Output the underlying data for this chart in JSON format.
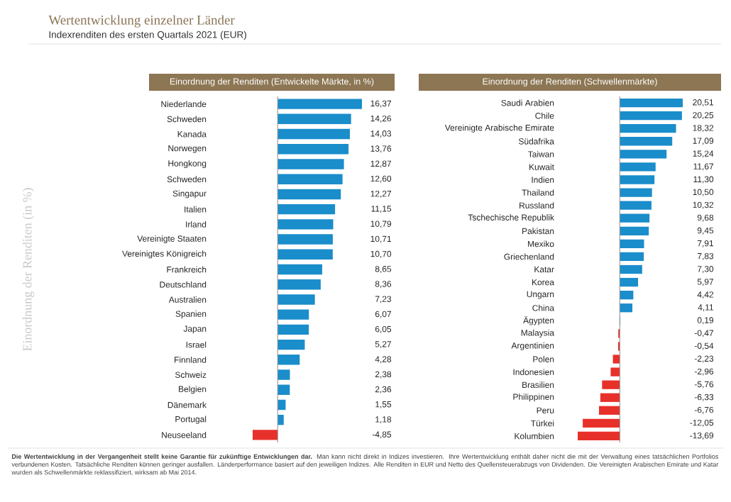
{
  "chart_data": [
    {
      "type": "bar",
      "orientation": "horizontal",
      "title": "Einordnung der Renditen (Entwickelte Märkte, in %)",
      "ylabel": "Einordnung der Renditen (in %)",
      "annotations": [
        "Wertentwicklung einzelner Länder",
        "Indexrenditen des ersten Quartals 2021 (EUR)"
      ],
      "categories": [
        "Niederlande",
        "Schweden",
        "Kanada",
        "Norwegen",
        "Hongkong",
        "Schweden",
        "Singapur",
        "Italien",
        "Irland",
        "Vereinigte Staaten",
        "Vereinigtes Königreich",
        "Frankreich",
        "Deutschland",
        "Australien",
        "Spanien",
        "Japan",
        "Israel",
        "Finnland",
        "Schweiz",
        "Belgien",
        "Dänemark",
        "Portugal",
        "Neuseeland"
      ],
      "values": [
        16.37,
        14.26,
        14.03,
        13.76,
        12.87,
        12.6,
        12.27,
        11.15,
        10.79,
        10.71,
        10.7,
        8.65,
        8.36,
        7.23,
        6.07,
        6.05,
        5.27,
        4.28,
        2.38,
        2.36,
        1.55,
        1.18,
        -4.85
      ],
      "value_labels": [
        "16,37",
        "14,26",
        "14,03",
        "13,76",
        "12,87",
        "12,60",
        "12,27",
        "11,15",
        "10,79",
        "10,71",
        "10,70",
        "8,65",
        "8,36",
        "7,23",
        "6,07",
        "6,05",
        "5,27",
        "4,28",
        "2,38",
        "2,36",
        "1,55",
        "1,18",
        "-4,85"
      ],
      "colors": [
        "#1a8dcb",
        "#1a8dcb",
        "#1a8dcb",
        "#1a8dcb",
        "#1a8dcb",
        "#1a8dcb",
        "#1a8dcb",
        "#1a8dcb",
        "#1a8dcb",
        "#1a8dcb",
        "#1a8dcb",
        "#1a8dcb",
        "#1a8dcb",
        "#1a8dcb",
        "#1a8dcb",
        "#1a8dcb",
        "#1a8dcb",
        "#1a8dcb",
        "#1a8dcb",
        "#1a8dcb",
        "#1a8dcb",
        "#1a8dcb",
        "#e8302a"
      ]
    },
    {
      "type": "bar",
      "orientation": "horizontal",
      "title": "Einordnung der Renditen (Schwellenmärkte)",
      "annotations": [
        "**Die Wertentwicklung in der Vergangenheit stellt keine Garantie für zukünftige Entwicklungen dar.** Man kann nicht direkt in Indizes investieren. Ihre Wertentwicklung enthält daher nicht die mit der Verwaltung eines tatsächlichen Portfolios verbundenen Kosten. Tatsächliche Renditen können geringer ausfallen. Länderperformance basiert auf den jeweiligen Indizes. Alle Renditen in EUR und Netto des Quellensteuerabzugs von Dividenden. Die Vereinigten Arabischen Emirate und Katar wurden als Schwellenmärkte reklassifiziert, wirksam ab Mai 2014."
      ],
      "categories": [
        "Saudi Arabien",
        "Chile",
        "Vereinigte Arabische Emirate",
        "Südafrika",
        "Taiwan",
        "Kuwait",
        "Indien",
        "Thailand",
        "Russland",
        "Tschechische Republik",
        "Pakistan",
        "Mexiko",
        "Griechenland",
        "Katar",
        "Korea",
        "Ungarn",
        "China",
        "Ägypten",
        "Malaysia",
        "Argentinien",
        "Polen",
        "Indonesien",
        "Brasilien",
        "Philippinen",
        "Peru",
        "Türkei",
        "Kolumbien"
      ],
      "values": [
        20.51,
        20.25,
        18.32,
        17.09,
        15.24,
        11.67,
        11.3,
        10.5,
        10.32,
        9.68,
        9.45,
        7.91,
        7.83,
        7.3,
        5.97,
        4.42,
        4.11,
        0.19,
        -0.47,
        -0.54,
        -2.23,
        -2.96,
        -5.76,
        -6.33,
        -6.76,
        -12.05,
        -13.69
      ],
      "value_labels": [
        "20,51",
        "20,25",
        "18,32",
        "17,09",
        "15,24",
        "11,67",
        "11,30",
        "10,50",
        "10,32",
        "9,68",
        "9,45",
        "7,91",
        "7,83",
        "7,30",
        "5,97",
        "4,42",
        "4,11",
        "0,19",
        "-0,47",
        "-0,54",
        "-2,23",
        "-2,96",
        "-5,76",
        "-6,33",
        "-6,76",
        "-12,05",
        "-13,69"
      ],
      "colors": [
        "#1a8dcb",
        "#1a8dcb",
        "#1a8dcb",
        "#1a8dcb",
        "#1a8dcb",
        "#1a8dcb",
        "#1a8dcb",
        "#1a8dcb",
        "#1a8dcb",
        "#1a8dcb",
        "#1a8dcb",
        "#1a8dcb",
        "#1a8dcb",
        "#1a8dcb",
        "#1a8dcb",
        "#1a8dcb",
        "#1a8dcb",
        "#1a8dcb",
        "#e8302a",
        "#e8302a",
        "#e8302a",
        "#e8302a",
        "#e8302a",
        "#e8302a",
        "#e8302a",
        "#e8302a",
        "#e8302a"
      ]
    }
  ]
}
